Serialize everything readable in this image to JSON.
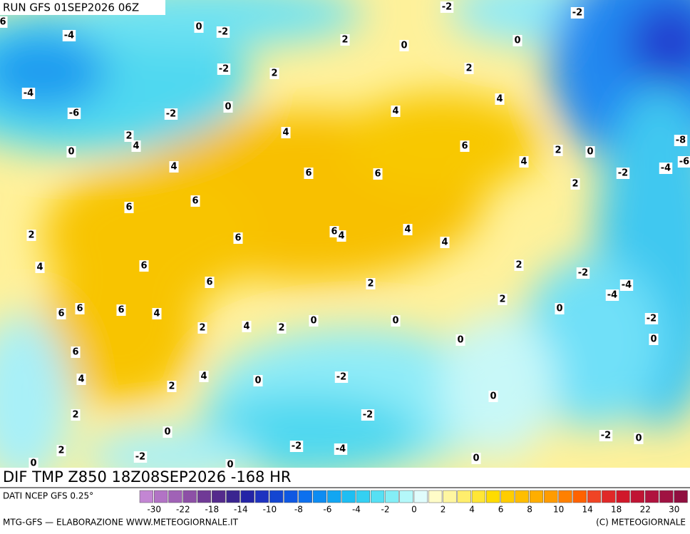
{
  "header": {
    "run": "RUN GFS 01SEP2026 06Z"
  },
  "map": {
    "title": "DIF TMP Z850 18Z08SEP2026 -168 HR",
    "contour_labels": [
      -2,
      -2,
      6,
      -4,
      0,
      -2,
      2,
      0,
      0,
      -2,
      2,
      2,
      -4,
      4,
      -6,
      -2,
      0,
      4,
      2,
      4,
      4,
      -8,
      0,
      6,
      2,
      0,
      4,
      4,
      6,
      6,
      -2,
      -4,
      -6,
      2,
      6,
      6,
      2,
      6,
      4,
      6,
      4,
      4,
      -2,
      4,
      6,
      2,
      6,
      -4,
      -4,
      2,
      2,
      6,
      6,
      6,
      4,
      0,
      -2,
      0,
      0,
      2,
      4,
      2,
      0,
      0,
      6,
      -2,
      4,
      4,
      0,
      2,
      0,
      2,
      -2,
      0,
      -2,
      0,
      -2,
      -4,
      2,
      -2,
      0,
      0,
      0
    ]
  },
  "legend": {
    "source": "DATI NCEP GFS 0.25°",
    "colors": [
      "#c386d3",
      "#b273c5",
      "#a062b6",
      "#8d50a6",
      "#703a96",
      "#542a8c",
      "#3a2590",
      "#2424a6",
      "#1e32c0",
      "#1446d2",
      "#0f58e2",
      "#0d70ee",
      "#0d8cf2",
      "#12a6f2",
      "#1ebef2",
      "#34d0f2",
      "#56e0f4",
      "#84eef6",
      "#b4f8fa",
      "#e0fcfc",
      "#fffcc8",
      "#fff6a0",
      "#ffee6c",
      "#ffe636",
      "#ffdc00",
      "#ffcd00",
      "#ffbe00",
      "#ffae00",
      "#ff9c00",
      "#ff8000",
      "#ff6200",
      "#f04424",
      "#e02828",
      "#d0182a",
      "#c01434",
      "#b0123e",
      "#a01242",
      "#901040"
    ],
    "ticks": [
      -30,
      -22,
      -18,
      -14,
      -10,
      -8,
      -6,
      -4,
      -2,
      0,
      2,
      4,
      6,
      8,
      10,
      14,
      18,
      22,
      30
    ]
  },
  "footer": {
    "credit": "MTG-GFS — ELABORAZIONE WWW.METEOGIORNALE.IT",
    "copyright": "(C) METEOGIORNALE"
  }
}
